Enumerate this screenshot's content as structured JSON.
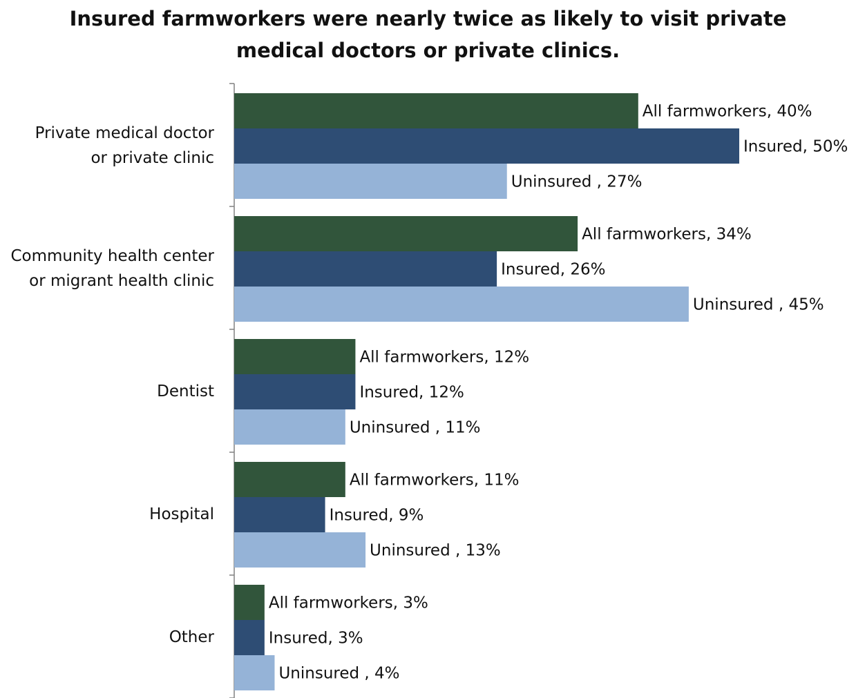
{
  "title_lines": [
    "Insured farmworkers were nearly twice as likely to visit private",
    "medical doctors or private clinics."
  ],
  "chart_data": {
    "type": "bar",
    "orientation": "horizontal",
    "categories": [
      [
        "Private medical doctor",
        "or private clinic"
      ],
      [
        "Community health center",
        "or migrant health clinic"
      ],
      [
        "Dentist"
      ],
      [
        "Hospital"
      ],
      [
        "Other"
      ]
    ],
    "series": [
      {
        "name": "All farmworkers",
        "label_prefix": "All farmworkers, ",
        "color": "#31553b",
        "values": [
          40,
          34,
          12,
          11,
          3
        ]
      },
      {
        "name": "Insured",
        "label_prefix": "Insured, ",
        "color": "#2e4d74",
        "values": [
          50,
          26,
          12,
          9,
          3
        ]
      },
      {
        "name": "Uninsured",
        "label_prefix": "Uninsured , ",
        "color": "#95b3d7",
        "values": [
          27,
          45,
          11,
          13,
          4
        ]
      }
    ],
    "value_suffix": "%",
    "xlim": [
      0,
      50
    ],
    "grid": false,
    "legend": "none (series names in data labels)"
  }
}
